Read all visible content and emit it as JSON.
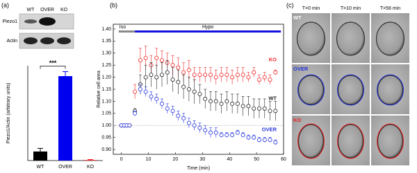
{
  "panel_labels": [
    "(a)",
    "(b)",
    "(c)"
  ],
  "blot": {
    "lanes": [
      "WT",
      "OVER",
      "KO"
    ],
    "rows": [
      "Piezo1",
      "Actin"
    ]
  },
  "chart_data": [
    {
      "type": "bar",
      "ylabel": "Piezo1/Actin (arbitrary units)",
      "categories": [
        "WT",
        "OVER",
        "KO"
      ],
      "values": [
        0.2,
        1.87,
        0.01
      ],
      "errors": [
        0.07,
        0.1,
        0.01
      ],
      "colors": [
        "#000000",
        "#0000ee",
        "#ee0000"
      ],
      "ylim": [
        0,
        2.1
      ],
      "annotation": "***"
    },
    {
      "type": "scatter",
      "xlabel": "Time (min)",
      "ylabel": "Relative cell area",
      "x": [
        0,
        1,
        2,
        3,
        5,
        7,
        9,
        11,
        13,
        15,
        17,
        19,
        21,
        23,
        25,
        27,
        29,
        31,
        33,
        35,
        37,
        39,
        41,
        43,
        45,
        47,
        49,
        51,
        53,
        55,
        57
      ],
      "series": [
        {
          "name": "KO",
          "color": "#ee2222",
          "values": [
            1.0,
            1.0,
            1.0,
            1.0,
            1.14,
            1.27,
            1.28,
            1.25,
            1.28,
            1.27,
            1.26,
            1.25,
            1.24,
            1.22,
            1.23,
            1.21,
            1.21,
            1.21,
            1.21,
            1.2,
            1.21,
            1.21,
            1.2,
            1.21,
            1.21,
            1.2,
            1.22,
            1.19,
            1.2,
            1.19,
            1.22
          ],
          "errors": [
            0.005,
            0.005,
            0.005,
            0.005,
            0.03,
            0.05,
            0.05,
            0.04,
            0.04,
            0.04,
            0.04,
            0.04,
            0.04,
            0.04,
            0.04,
            0.03,
            0.03,
            0.03,
            0.03,
            0.03,
            0.03,
            0.03,
            0.03,
            0.03,
            0.03,
            0.02,
            0.02,
            0.02,
            0.02,
            0.02,
            0.01
          ]
        },
        {
          "name": "WT",
          "color": "#222222",
          "values": [
            1.0,
            1.0,
            1.0,
            1.0,
            1.06,
            1.17,
            1.2,
            1.21,
            1.2,
            1.21,
            1.22,
            1.19,
            1.18,
            1.16,
            1.15,
            1.14,
            1.13,
            1.11,
            1.1,
            1.1,
            1.09,
            1.1,
            1.09,
            1.09,
            1.08,
            1.08,
            1.07,
            1.07,
            1.07,
            1.06,
            1.06
          ],
          "errors": [
            0.005,
            0.005,
            0.005,
            0.005,
            0.01,
            0.04,
            0.05,
            0.05,
            0.05,
            0.05,
            0.05,
            0.05,
            0.05,
            0.05,
            0.05,
            0.05,
            0.04,
            0.04,
            0.04,
            0.04,
            0.04,
            0.04,
            0.04,
            0.04,
            0.04,
            0.04,
            0.04,
            0.04,
            0.04,
            0.04,
            0.04
          ]
        },
        {
          "name": "OVER",
          "color": "#2233dd",
          "values": [
            1.0,
            1.0,
            1.0,
            1.0,
            1.05,
            1.15,
            1.14,
            1.12,
            1.11,
            1.09,
            1.07,
            1.06,
            1.04,
            1.03,
            1.01,
            1.0,
            0.99,
            0.98,
            0.97,
            0.97,
            0.96,
            0.96,
            0.96,
            0.97,
            0.96,
            0.95,
            0.95,
            0.94,
            0.94,
            0.94,
            0.93
          ],
          "errors": [
            0.005,
            0.005,
            0.005,
            0.005,
            0.01,
            0.02,
            0.02,
            0.02,
            0.02,
            0.02,
            0.02,
            0.02,
            0.02,
            0.02,
            0.02,
            0.02,
            0.02,
            0.02,
            0.02,
            0.02,
            0.01,
            0.01,
            0.01,
            0.01,
            0.01,
            0.01,
            0.01,
            0.01,
            0.01,
            0.01,
            0.01
          ]
        }
      ],
      "xlim": [
        -3,
        60
      ],
      "xticks": [
        0,
        10,
        20,
        30,
        40,
        50,
        60
      ],
      "ylim": [
        0.88,
        1.42
      ],
      "yticks": [
        {
          "value": 0.9,
          "label": "0.90"
        },
        0.95,
        {
          "value": 1.0,
          "label": "1.00"
        },
        1.05,
        {
          "value": 1.1,
          "label": "1.10"
        },
        1.15,
        {
          "value": 1.2,
          "label": "1.20"
        },
        1.25,
        {
          "value": 1.3,
          "label": "1.30"
        },
        1.35,
        {
          "value": 1.4,
          "label": "1.40"
        }
      ],
      "reference_line": 1,
      "protocol": [
        {
          "label": "Iso",
          "color": "#888888",
          "start": -1,
          "end": 5
        },
        {
          "label": "Hypo",
          "color": "#1111dd",
          "start": 5,
          "end": 59
        }
      ]
    }
  ],
  "micrographs": {
    "columns": [
      "T=0 min",
      "T=10 min",
      "T=56 min"
    ],
    "rows": [
      {
        "label": "WT",
        "color": "#ffffff"
      },
      {
        "label": "OVER",
        "color": "#2233dd"
      },
      {
        "label": "KO",
        "color": "#ee2222"
      }
    ]
  }
}
